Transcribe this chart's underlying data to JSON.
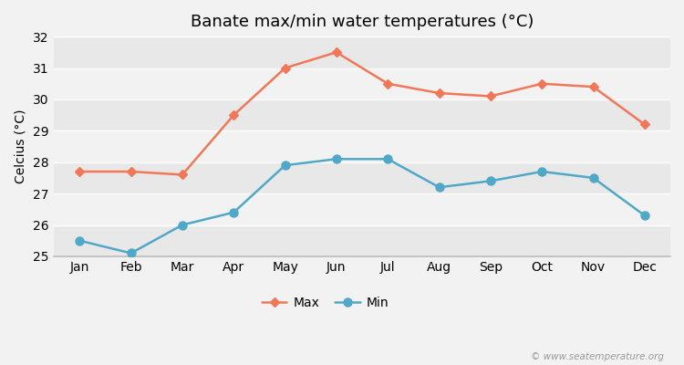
{
  "title": "Banate max/min water temperatures (°C)",
  "ylabel": "Celcius (°C)",
  "months": [
    "Jan",
    "Feb",
    "Mar",
    "Apr",
    "May",
    "Jun",
    "Jul",
    "Aug",
    "Sep",
    "Oct",
    "Nov",
    "Dec"
  ],
  "max_values": [
    27.7,
    27.7,
    27.6,
    29.5,
    31.0,
    31.5,
    30.5,
    30.2,
    30.1,
    30.5,
    30.4,
    29.2
  ],
  "min_values": [
    25.5,
    25.1,
    26.0,
    26.4,
    27.9,
    28.1,
    28.1,
    27.2,
    27.4,
    27.7,
    27.5,
    26.3
  ],
  "max_color": "#f07858",
  "min_color": "#50a8c8",
  "ylim": [
    25,
    32
  ],
  "yticks": [
    25,
    26,
    27,
    28,
    29,
    30,
    31,
    32
  ],
  "figure_bg": "#f2f2f2",
  "plot_bg_light": "#f2f2f2",
  "plot_bg_dark": "#e8e8e8",
  "grid_color": "#ffffff",
  "watermark": "© www.seatemperature.org",
  "legend_labels": [
    "Max",
    "Min"
  ],
  "title_fontsize": 13,
  "axis_fontsize": 10,
  "tick_fontsize": 10
}
